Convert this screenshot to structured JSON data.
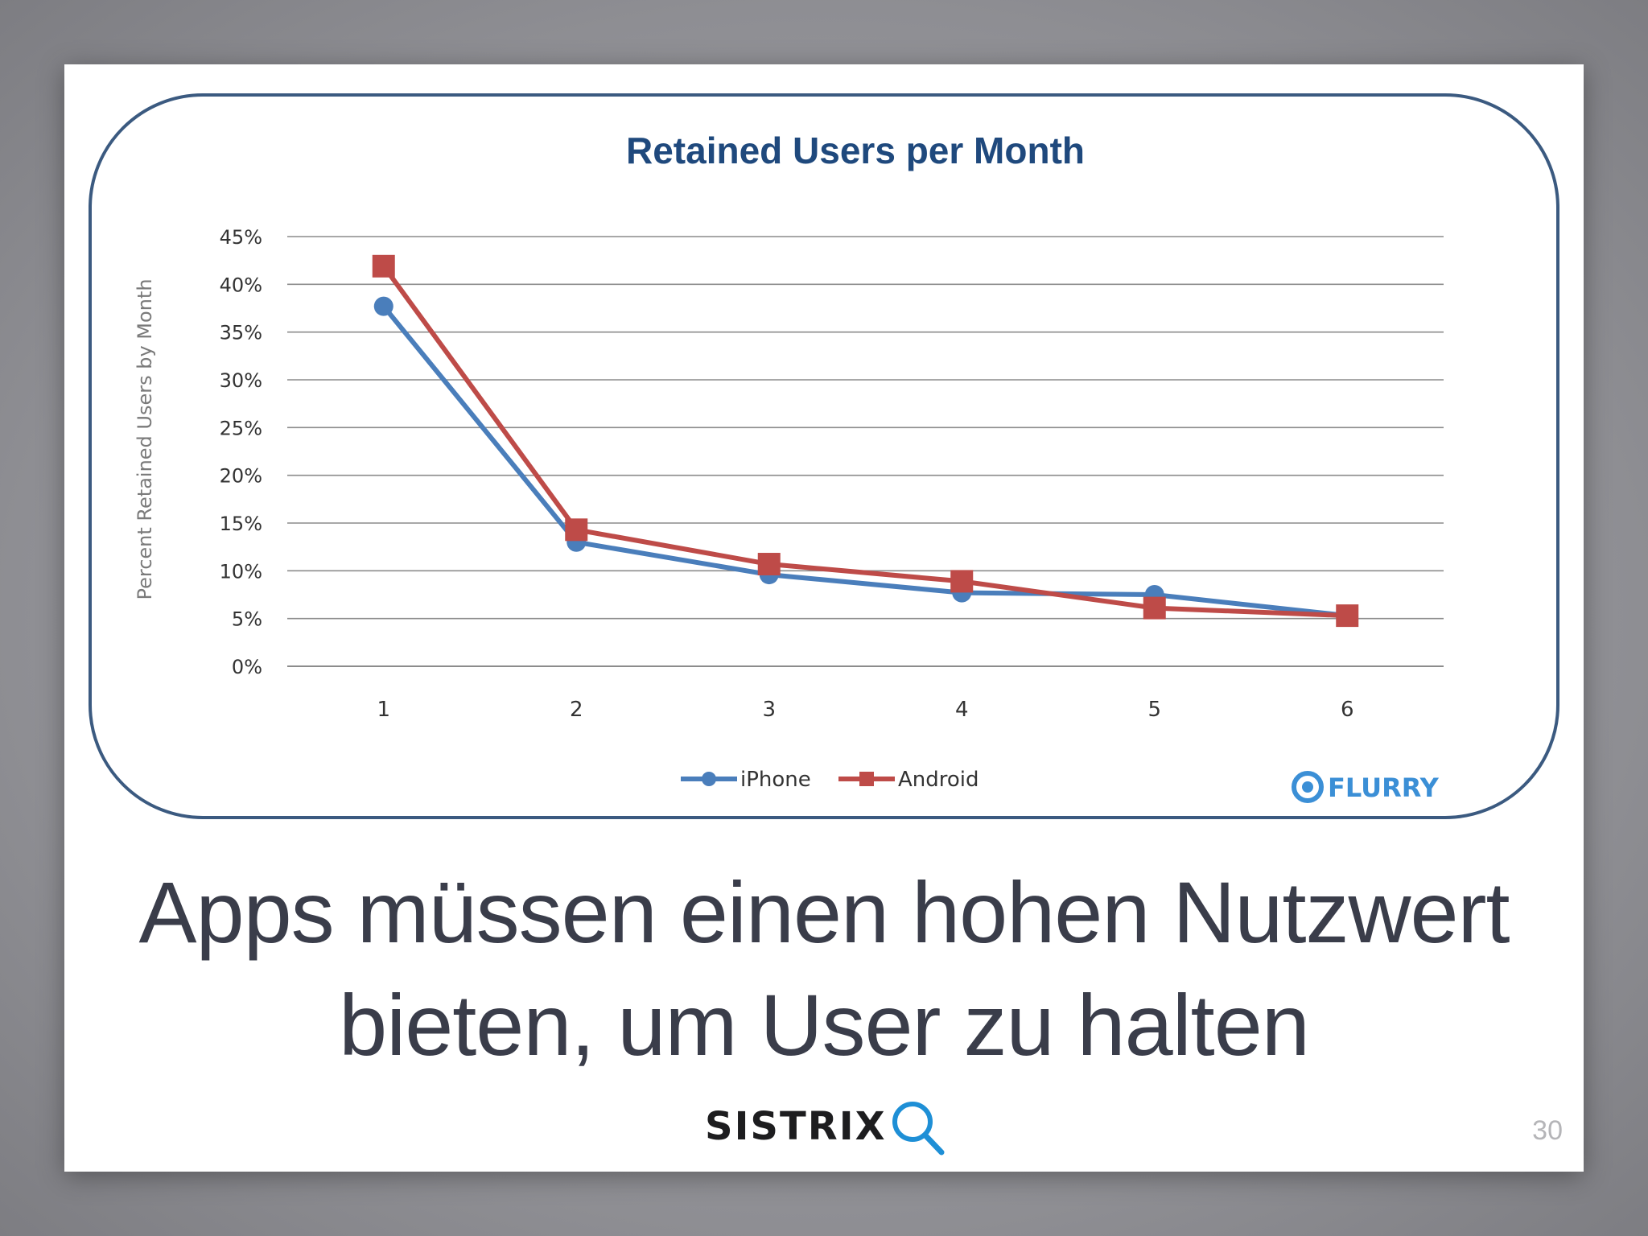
{
  "chart_data": {
    "type": "line",
    "title": "Retained Users per Month",
    "xlabel": "",
    "ylabel": "Percent Retained Users by Month",
    "x": [
      1,
      2,
      3,
      4,
      5,
      6
    ],
    "x_tick_labels": [
      "1",
      "2",
      "3",
      "4",
      "5",
      "6"
    ],
    "y_tick_labels": [
      "0%",
      "5%",
      "10%",
      "15%",
      "20%",
      "25%",
      "30%",
      "35%",
      "40%",
      "45%"
    ],
    "ylim": [
      0,
      45
    ],
    "grid": "horizontal",
    "legend_position": "bottom",
    "series": [
      {
        "name": "iPhone",
        "values": [
          37.7,
          13.0,
          9.6,
          7.7,
          7.5,
          5.3
        ],
        "color": "#4a7ebb",
        "marker": "circle"
      },
      {
        "name": "Android",
        "values": [
          41.9,
          14.3,
          10.7,
          8.9,
          6.1,
          5.3
        ],
        "color": "#be4b48",
        "marker": "square"
      }
    ],
    "source_logo": "FLURRY"
  },
  "slide": {
    "headline_line1": "Apps müssen einen hohen Nutzwert",
    "headline_line2": "bieten, um User zu halten",
    "brand_logo_text": "SISTRIX",
    "brand_logo_icon": "magnifier-icon",
    "page_number": "30"
  },
  "colors": {
    "title": "#1f497d",
    "frame": "#3b5a80",
    "headline": "#3a3d4a",
    "logo_accent": "#1e8fd6"
  }
}
